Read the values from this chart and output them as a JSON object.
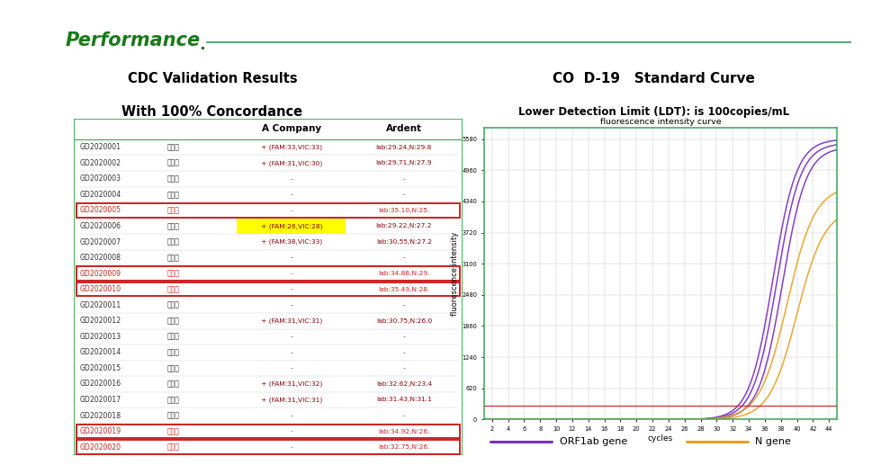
{
  "title_text": "Performance",
  "title_color": "#1a7a1a",
  "line_color": "#4a9a6a",
  "left_title1": "CDC Validation Results",
  "left_title2": "With 100% Concordance",
  "right_title1": "CO  D-19   Standard Curve",
  "right_title2": "Lower Detection Limit (LDT): is 100copies/mL",
  "table_rows": [
    [
      "GD2020001",
      "咍拭子",
      "+ (FAM:33,VIC:33)",
      "lab:29.24,N:29.8"
    ],
    [
      "GD2020002",
      "咍拭子",
      "+ (FAM:31,VIC:30)",
      "lab:29.71,N:27.9"
    ],
    [
      "GD2020003",
      "咍拭子",
      "-",
      "-"
    ],
    [
      "GD2020004",
      "咍拭子",
      "-",
      "-"
    ],
    [
      "GD2020005",
      "咍拭子",
      "-",
      "lab:35.10,N:25."
    ],
    [
      "GD2020006",
      "咍拭子",
      "+ (FAM:26,VIC:28)",
      "lab:29.22,N:27.2"
    ],
    [
      "GD2020007",
      "咍拭子",
      "+ (FAM:38,VIC:33)",
      "lab:30.55,N:27.2"
    ],
    [
      "GD2020008",
      "咍拭子",
      "-",
      "-"
    ],
    [
      "GD2020009",
      "咍拭子",
      "-",
      "lab:34.86,N:29."
    ],
    [
      "GD2020010",
      "咍拭子",
      "-",
      "lab:35.49,N:28."
    ],
    [
      "GD2020011",
      "咍拭子",
      "-",
      "-"
    ],
    [
      "GD2020012",
      "咍拭子",
      "+ (FAM:31,VIC:31)",
      "lab:30.75,N:26.0"
    ],
    [
      "GD2020013",
      "咍拭子",
      "-",
      "-"
    ],
    [
      "GD2020014",
      "咍拭子",
      "-",
      "-"
    ],
    [
      "GD2020015",
      "咍拭子",
      "-",
      "-"
    ],
    [
      "GD2020016",
      "咍拭子",
      "+ (FAM:31,VIC:32)",
      "lab:32.62,N:23.4"
    ],
    [
      "GD2020017",
      "咍拭子",
      "+ (FAM:31,VIC:31)",
      "lab:31.43,N:31.1"
    ],
    [
      "GD2020018",
      "咍拭子",
      "-",
      "-"
    ],
    [
      "GD2020019",
      "咍拭子",
      "-",
      "lab:34.92,N:26."
    ],
    [
      "GD2020020",
      "咍拭子",
      "-",
      "lab:32.75,N:26."
    ]
  ],
  "col_headers": [
    "",
    "",
    "A Company",
    "Ardent"
  ],
  "red_box_rows": [
    4,
    8,
    9,
    18,
    19
  ],
  "yellow_bg_rows": [
    5
  ],
  "chart_title": "fluorescence intensity curve",
  "chart_xlabel": "cycles",
  "chart_ylabel": "fluorescence intensity",
  "chart_yticks": [
    0,
    620,
    1240,
    1860,
    2480,
    3100,
    3720,
    4340,
    4960,
    5580
  ],
  "chart_xticks": [
    2,
    4,
    6,
    8,
    10,
    12,
    14,
    16,
    18,
    20,
    22,
    24,
    26,
    28,
    30,
    32,
    34,
    36,
    38,
    40,
    42,
    44
  ],
  "chart_xlim": [
    1,
    45
  ],
  "chart_ylim": [
    0,
    5800
  ],
  "orf_color": "#7b2fbe",
  "n_gene_color": "#e8a020",
  "threshold_color": "#cc2222",
  "legend_orf": "ORF1ab gene",
  "legend_n": "N gene",
  "background_color": "#ffffff"
}
